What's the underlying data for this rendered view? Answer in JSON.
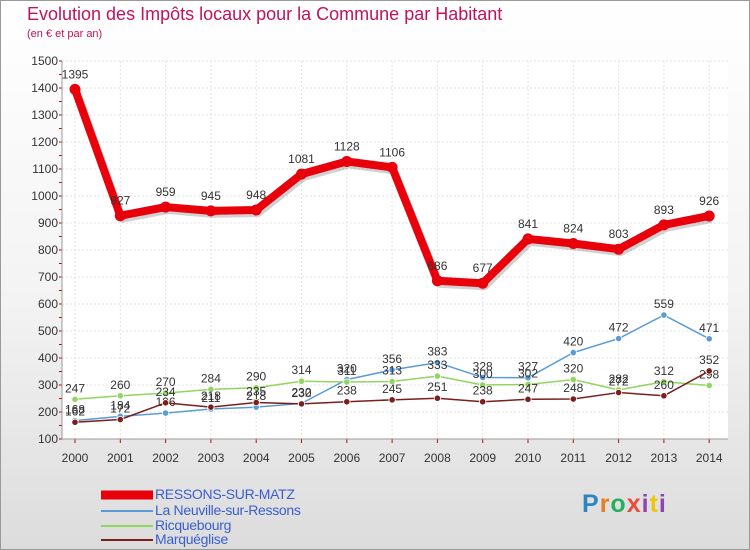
{
  "header": {
    "title": "Evolution des Impôts locaux pour la Commune par Habitant",
    "subtitle": "(en € et par an)"
  },
  "brand": {
    "logo_parts": [
      "P",
      "r",
      "o",
      "x",
      "i",
      "t",
      "i"
    ]
  },
  "chart_data": {
    "type": "line",
    "title": "Evolution des Impôts locaux pour la Commune par Habitant",
    "ylabel": "(en € et par an)",
    "xlabel": "",
    "ylim": [
      100,
      1500
    ],
    "yticks": [
      100,
      200,
      300,
      400,
      500,
      600,
      700,
      800,
      900,
      1000,
      1100,
      1200,
      1300,
      1400,
      1500
    ],
    "categories": [
      "2000",
      "2001",
      "2002",
      "2003",
      "2004",
      "2005",
      "2006",
      "2007",
      "2008",
      "2009",
      "2010",
      "2011",
      "2012",
      "2013",
      "2014"
    ],
    "grid": true,
    "legend": "bottom-left",
    "series": [
      {
        "name": "RESSONS-SUR-MATZ",
        "color": "#e8000b",
        "values": [
          1395,
          927,
          959,
          945,
          948,
          1081,
          1128,
          1106,
          686,
          677,
          841,
          824,
          803,
          893,
          926
        ]
      },
      {
        "name": "La Neuville-sur-Ressons",
        "color": "#5b9bd5",
        "values": [
          168,
          184,
          196,
          211,
          218,
          232,
          320,
          356,
          383,
          328,
          327,
          420,
          472,
          559,
          471
        ]
      },
      {
        "name": "Ricquebourg",
        "color": "#90d660",
        "values": [
          247,
          260,
          270,
          284,
          290,
          314,
          311,
          313,
          333,
          300,
          302,
          320,
          282,
          312,
          298
        ]
      },
      {
        "name": "Marquéglise",
        "color": "#7a1e1e",
        "values": [
          162,
          172,
          234,
          218,
          235,
          230,
          238,
          245,
          251,
          238,
          247,
          248,
          272,
          260,
          352
        ]
      }
    ]
  }
}
